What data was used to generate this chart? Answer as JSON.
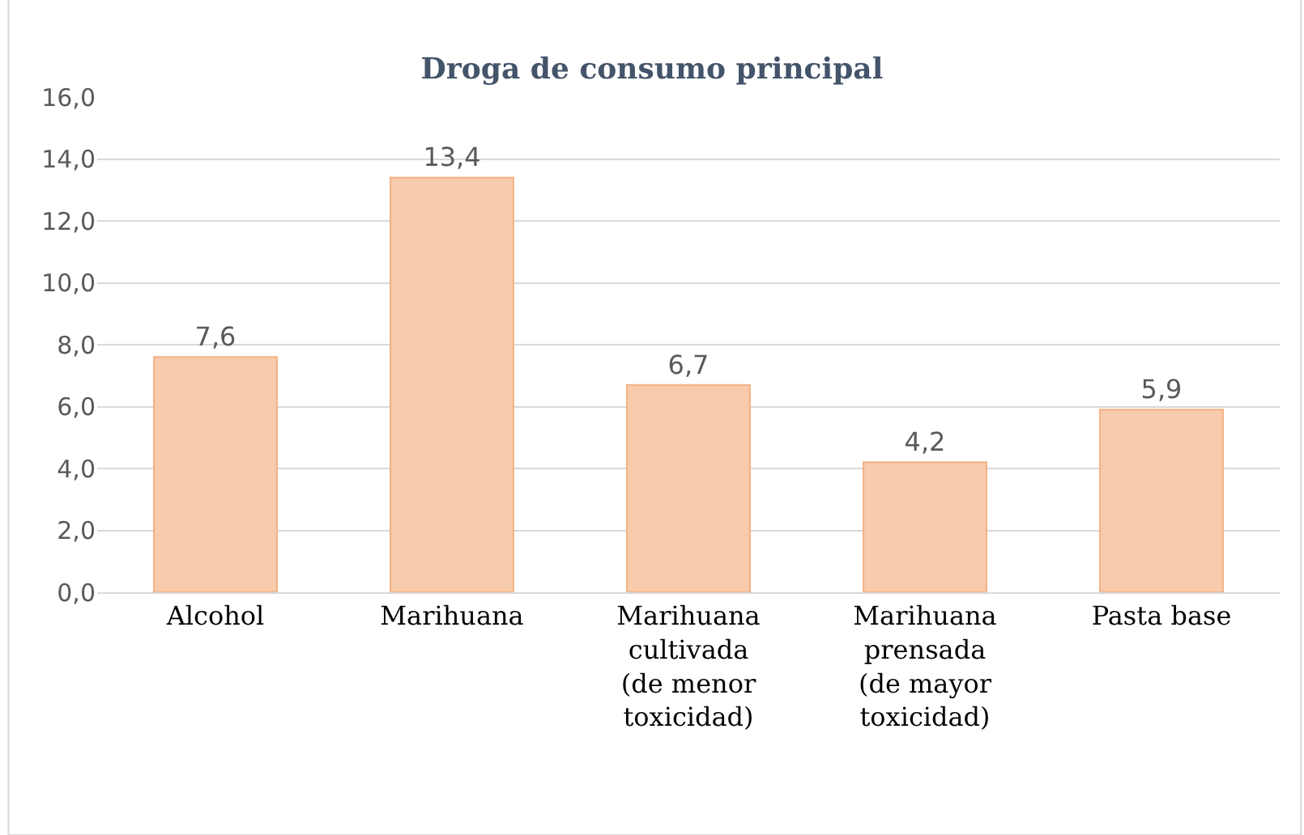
{
  "chart_data": {
    "type": "bar",
    "title": "Droga de consumo principal",
    "categories": [
      "Alcohol",
      "Marihuana",
      "Marihuana cultivada (de menor toxicidad)",
      "Marihuana prensada (de mayor toxicidad)",
      "Pasta base"
    ],
    "values": [
      7.6,
      13.4,
      6.7,
      4.2,
      5.9
    ],
    "value_labels": [
      "7,6",
      "13,4",
      "6,7",
      "4,2",
      "5,9"
    ],
    "color": "#f8cbad",
    "ylim": [
      0,
      16
    ],
    "yticks": [
      {
        "value": 0,
        "label": "0,0"
      },
      {
        "value": 2,
        "label": "2,0"
      },
      {
        "value": 4,
        "label": "4,0"
      },
      {
        "value": 6,
        "label": "6,0"
      },
      {
        "value": 8,
        "label": "8,0"
      },
      {
        "value": 10,
        "label": "10,0"
      },
      {
        "value": 12,
        "label": "12,0"
      },
      {
        "value": 14,
        "label": "14,0"
      },
      {
        "value": 16,
        "label": "16,0"
      }
    ],
    "grid": "y",
    "legend": false
  }
}
